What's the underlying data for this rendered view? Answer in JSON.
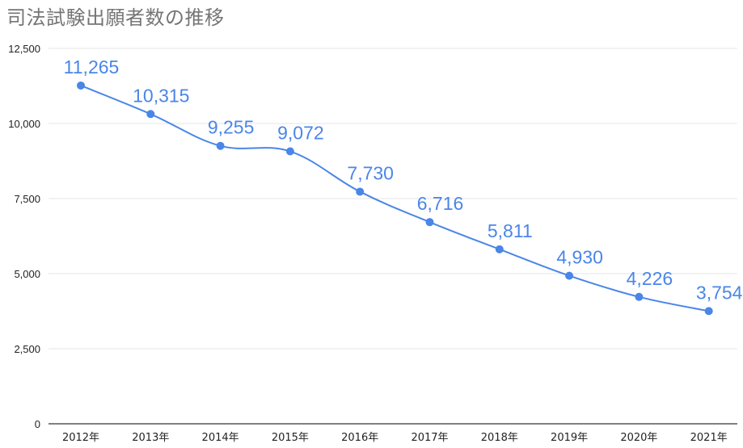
{
  "chart_data": {
    "type": "line",
    "title": "司法試験出願者数の推移",
    "categories": [
      "2012年",
      "2013年",
      "2014年",
      "2015年",
      "2016年",
      "2017年",
      "2018年",
      "2019年",
      "2020年",
      "2021年"
    ],
    "values": [
      11265,
      10315,
      9255,
      9072,
      7730,
      6716,
      5811,
      4930,
      4226,
      3754
    ],
    "data_labels": [
      "11,265",
      "10,315",
      "9,255",
      "9,072",
      "7,730",
      "6,716",
      "5,811",
      "4,930",
      "4,226",
      "3,754"
    ],
    "ylim": [
      0,
      12500
    ],
    "yticks": [
      0,
      2500,
      5000,
      7500,
      10000,
      12500
    ],
    "ytick_labels": [
      "0",
      "2,500",
      "5,000",
      "7,500",
      "10,000",
      "12,500"
    ],
    "grid": true,
    "legend": "none",
    "line_color": "#4a86e8",
    "grid_color": "#e6e6e6",
    "axis_color": "#333333"
  }
}
